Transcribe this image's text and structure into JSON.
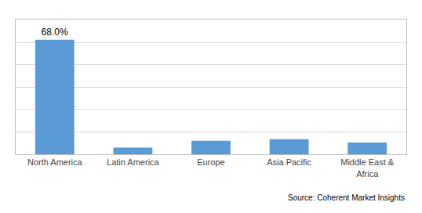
{
  "chart_data": {
    "type": "bar",
    "categories": [
      "North America",
      "Latin America",
      "Europe",
      "Asia Pacific",
      "Middle East &\nAfrica"
    ],
    "values": [
      68.0,
      4.0,
      8.0,
      9.0,
      7.0
    ],
    "value_labels": [
      "68.0%",
      null,
      null,
      null,
      null
    ],
    "data_labels": true,
    "color": "#5B9BD5",
    "ylim": [
      0,
      80
    ],
    "yticks": [
      0,
      13.3,
      26.6,
      39.9,
      53.2,
      66.5,
      79.8
    ],
    "grid": true,
    "tick_labels": "x",
    "annotations": [
      "Source: Coherent Market Insights"
    ]
  }
}
